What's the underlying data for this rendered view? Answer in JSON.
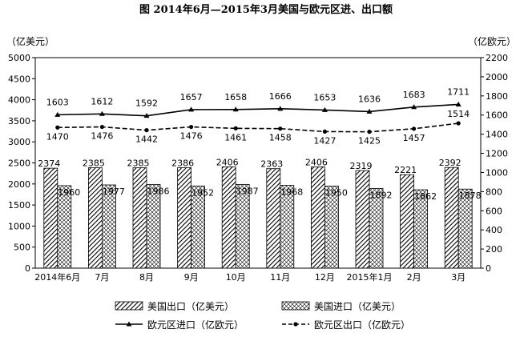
{
  "chart_data": {
    "type": "bar",
    "title": "图    2014年6月—2015年3月美国与欧元区进、出口额",
    "ylabel_left": "（亿美元）",
    "ylabel_right": "（亿欧元）",
    "ylim_left": [
      0,
      5000
    ],
    "ylim_right": [
      0,
      2200
    ],
    "yticks_left": [
      0,
      500,
      1000,
      1500,
      2000,
      2500,
      3000,
      3500,
      4000,
      4500,
      5000
    ],
    "yticks_right": [
      0,
      200,
      400,
      600,
      800,
      1000,
      1200,
      1400,
      1600,
      1800,
      2000,
      2200
    ],
    "categories": [
      "2014年6月",
      "7月",
      "8月",
      "9月",
      "10月",
      "11月",
      "12月",
      "2015年1月",
      "2月",
      "3月"
    ],
    "grid": false,
    "legend_position": "bottom",
    "series": [
      {
        "name": "美国出口（亿美元）",
        "kind": "bar",
        "axis": "left",
        "pattern": "diagonal-hatch",
        "values": [
          2374,
          2385,
          2385,
          2386,
          2406,
          2363,
          2406,
          2319,
          2221,
          2392
        ]
      },
      {
        "name": "美国进口（亿美元）",
        "kind": "bar",
        "axis": "left",
        "pattern": "cross-hatch",
        "values": [
          1960,
          1977,
          1986,
          1952,
          1987,
          1968,
          1950,
          1892,
          1862,
          1878
        ]
      },
      {
        "name": "欧元区进口（亿欧元）",
        "kind": "line",
        "axis": "right",
        "style": "solid",
        "marker": "triangle",
        "values": [
          1603,
          1612,
          1592,
          1657,
          1658,
          1666,
          1653,
          1636,
          1683,
          1711
        ]
      },
      {
        "name": "欧元区出口（亿欧元）",
        "kind": "line",
        "axis": "right",
        "style": "dashed",
        "marker": "circle",
        "values": [
          1470,
          1476,
          1442,
          1476,
          1461,
          1458,
          1427,
          1425,
          1457,
          1514
        ]
      }
    ]
  }
}
